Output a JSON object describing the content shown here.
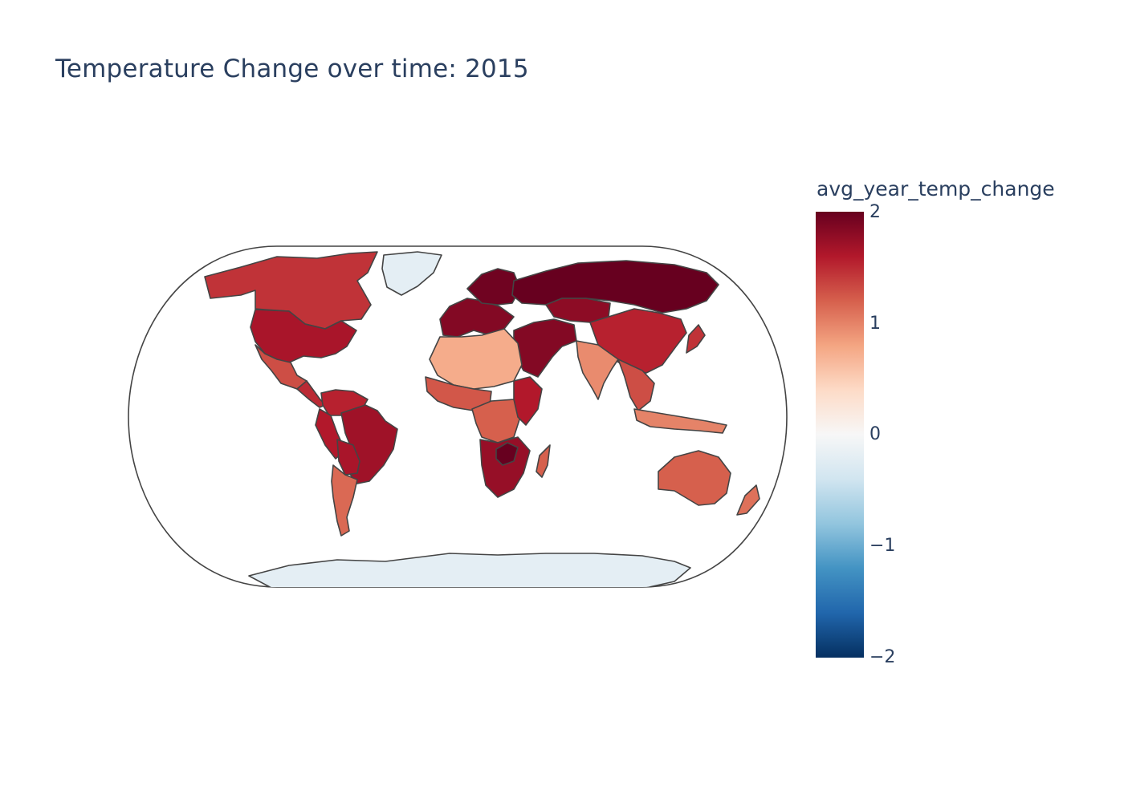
{
  "title": "Temperature Change over time: 2015",
  "colorbar": {
    "title": "avg_year_temp_change",
    "ticks": [
      "2",
      "1",
      "0",
      "−1",
      "−2"
    ],
    "range": [
      -2,
      2
    ],
    "colorscale": [
      "#053061",
      "#2166ac",
      "#4393c3",
      "#92c5de",
      "#d1e5f0",
      "#f7f7f7",
      "#fddbc7",
      "#f4a582",
      "#d6604d",
      "#b2182b",
      "#67001f"
    ]
  },
  "map": {
    "projection": "natural earth",
    "year": 2015,
    "border_color": "#444444",
    "regions": [
      {
        "name": "Canada",
        "value": 1.45
      },
      {
        "name": "United States",
        "value": 1.65
      },
      {
        "name": "Mexico",
        "value": 1.3
      },
      {
        "name": "Greenland",
        "value": -0.2
      },
      {
        "name": "Central America",
        "value": 1.5
      },
      {
        "name": "Colombia & Venezuela",
        "value": 1.55
      },
      {
        "name": "Peru & Ecuador",
        "value": 1.6
      },
      {
        "name": "Brazil",
        "value": 1.7
      },
      {
        "name": "Bolivia & Paraguay",
        "value": 1.65
      },
      {
        "name": "Argentina & Chile",
        "value": 1.15
      },
      {
        "name": "Western Europe",
        "value": 1.85
      },
      {
        "name": "Scandinavia",
        "value": 1.95
      },
      {
        "name": "Russia",
        "value": 2.0
      },
      {
        "name": "Kazakhstan",
        "value": 1.8
      },
      {
        "name": "China",
        "value": 1.55
      },
      {
        "name": "Middle East",
        "value": 1.85
      },
      {
        "name": "India",
        "value": 0.95
      },
      {
        "name": "Southeast Asia",
        "value": 1.3
      },
      {
        "name": "North Africa",
        "value": 0.75
      },
      {
        "name": "West Africa",
        "value": 1.25
      },
      {
        "name": "Central Africa",
        "value": 1.2
      },
      {
        "name": "East Africa",
        "value": 1.6
      },
      {
        "name": "Southern Africa",
        "value": 1.75
      },
      {
        "name": "Zimbabwe",
        "value": 2.0
      },
      {
        "name": "Madagascar",
        "value": 1.2
      },
      {
        "name": "Australia",
        "value": 1.2
      },
      {
        "name": "New Zealand",
        "value": 1.1
      },
      {
        "name": "Japan",
        "value": 1.45
      },
      {
        "name": "Indonesia",
        "value": 1.0
      },
      {
        "name": "Antarctica",
        "value": -0.2
      }
    ]
  }
}
